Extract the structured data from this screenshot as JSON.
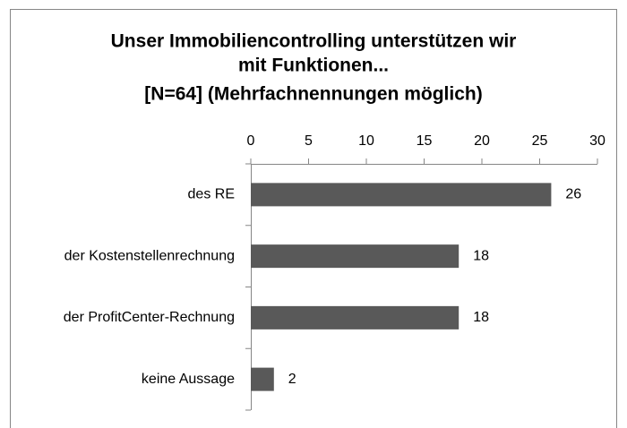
{
  "chart_data": {
    "type": "bar",
    "orientation": "horizontal",
    "title": [
      "Unser Immobiliencontrolling unterstützen wir",
      "mit Funktionen...",
      "[N=64] (Mehrfachnennungen möglich)"
    ],
    "categories": [
      "des RE",
      "der Kostenstellenrechnung",
      "der ProfitCenter-Rechnung",
      "keine Aussage"
    ],
    "values": [
      26,
      18,
      18,
      2
    ],
    "color": "#595959",
    "xlim": [
      0,
      30
    ],
    "xticks": [
      0,
      5,
      10,
      15,
      20,
      25,
      30
    ],
    "grid": false
  }
}
